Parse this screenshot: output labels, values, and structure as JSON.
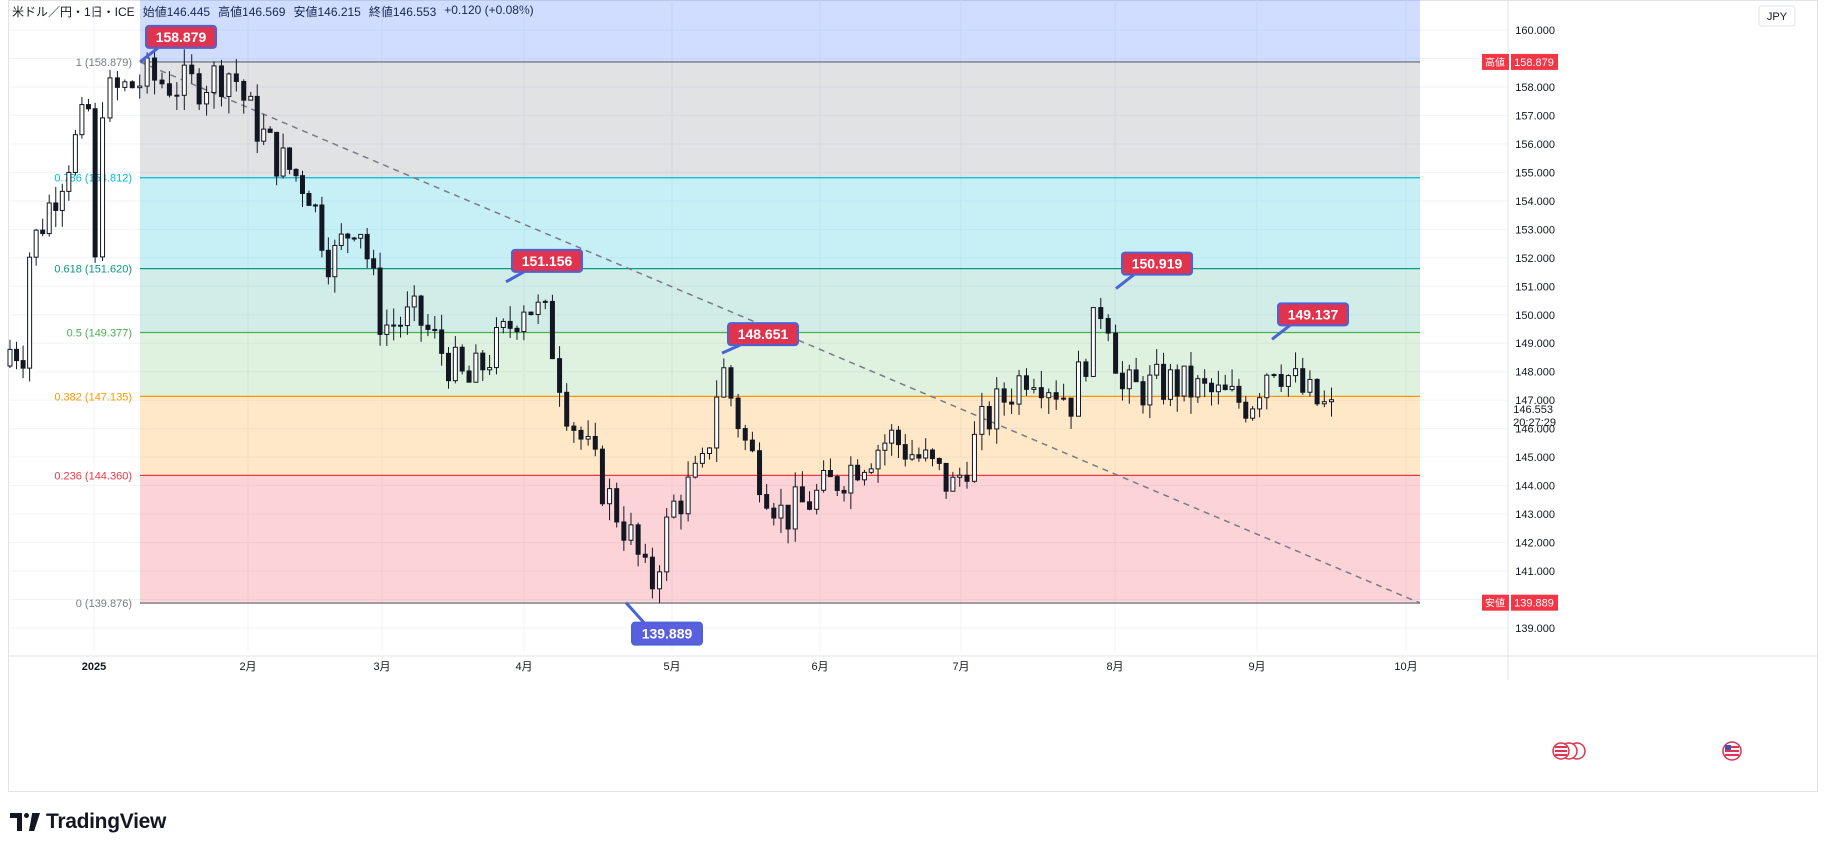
{
  "header": {
    "symbol": "米ドル／円・1日・ICE",
    "open": "始値146.445",
    "high": "高値146.569",
    "low": "安値146.215",
    "close": "終値146.553",
    "change": "+0.120 (+0.08%)"
  },
  "currency_label": "JPY",
  "brand": "TradingView",
  "chart_data": {
    "type": "candlestick",
    "title": "",
    "ylim": [
      138.4,
      160.8
    ],
    "y_ticks": [
      "160.000",
      "159.000",
      "158.000",
      "157.000",
      "156.000",
      "155.000",
      "154.000",
      "153.000",
      "152.000",
      "151.000",
      "150.000",
      "149.000",
      "148.000",
      "147.000",
      "146.000",
      "145.000",
      "144.000",
      "143.000",
      "142.000",
      "141.000",
      "140.000",
      "139.000"
    ],
    "x_ticks": [
      "2025",
      "2月",
      "3月",
      "4月",
      "5月",
      "6月",
      "7月",
      "8月",
      "9月",
      "10月"
    ],
    "fib_levels": [
      {
        "ratio": "1",
        "price": 158.879,
        "label": "1 (158.879)",
        "color": "#787b86"
      },
      {
        "ratio": "0.786",
        "price": 154.812,
        "label": "0.786 (154.812)",
        "color": "#00bcd4"
      },
      {
        "ratio": "0.618",
        "price": 151.62,
        "label": "0.618 (151.620)",
        "color": "#089981"
      },
      {
        "ratio": "0.5",
        "price": 149.377,
        "label": "0.5 (149.377)",
        "color": "#4caf50"
      },
      {
        "ratio": "0.382",
        "price": 147.135,
        "label": "0.382 (147.135)",
        "color": "#ff9800"
      },
      {
        "ratio": "0.236",
        "price": 144.36,
        "label": "0.236 (144.360)",
        "color": "#f23645"
      },
      {
        "ratio": "0",
        "price": 139.876,
        "label": "0 (139.876)",
        "color": "#787b86"
      }
    ],
    "callouts": [
      {
        "text": "158.879",
        "color": "#e0334d",
        "price": 158.879
      },
      {
        "text": "151.156",
        "color": "#e0334d",
        "price": 151.156
      },
      {
        "text": "148.651",
        "color": "#e0334d",
        "price": 148.651
      },
      {
        "text": "150.919",
        "color": "#e0334d",
        "price": 150.919
      },
      {
        "text": "149.137",
        "color": "#e0334d",
        "price": 149.137
      },
      {
        "text": "139.889",
        "color": "#5a5fe0",
        "price": 139.889
      }
    ],
    "price_badges": [
      {
        "label": "高値",
        "value": "158.879",
        "price": 158.879
      },
      {
        "label": "安値",
        "value": "139.889",
        "price": 139.889
      }
    ],
    "last_price": {
      "value": "146.553",
      "countdown": "20:27:29",
      "price": 146.553
    },
    "trend_line": {
      "from_price": 158.879,
      "to_price": 139.876
    },
    "anchors": [
      {
        "month": 0,
        "price": 148.2
      },
      {
        "month": 0.02,
        "price": 157.5
      },
      {
        "month": 0.35,
        "price": 158.3
      },
      {
        "month": 0.6,
        "price": 158.0
      },
      {
        "month": 0.9,
        "price": 158.6
      },
      {
        "month": 1.0,
        "price": 157.2
      },
      {
        "month": 1.2,
        "price": 155.6
      },
      {
        "month": 1.45,
        "price": 154.5
      },
      {
        "month": 1.62,
        "price": 151.8
      },
      {
        "month": 1.82,
        "price": 153.6
      },
      {
        "month": 2.0,
        "price": 149.6
      },
      {
        "month": 2.25,
        "price": 149.9
      },
      {
        "month": 2.6,
        "price": 147.5
      },
      {
        "month": 2.85,
        "price": 149.2
      },
      {
        "month": 3.0,
        "price": 150.5
      },
      {
        "month": 3.15,
        "price": 149.8
      },
      {
        "month": 3.3,
        "price": 146.6
      },
      {
        "month": 3.55,
        "price": 143.8
      },
      {
        "month": 3.72,
        "price": 142.2
      },
      {
        "month": 3.85,
        "price": 140.3
      },
      {
        "month": 4.0,
        "price": 143.2
      },
      {
        "month": 4.22,
        "price": 144.6
      },
      {
        "month": 4.33,
        "price": 148.3
      },
      {
        "month": 4.5,
        "price": 145.4
      },
      {
        "month": 4.75,
        "price": 142.9
      },
      {
        "month": 5.0,
        "price": 143.7
      },
      {
        "month": 5.25,
        "price": 144.8
      },
      {
        "month": 5.5,
        "price": 145.7
      },
      {
        "month": 5.75,
        "price": 144.8
      },
      {
        "month": 5.95,
        "price": 143.9
      },
      {
        "month": 6.15,
        "price": 146.2
      },
      {
        "month": 6.45,
        "price": 148.2
      },
      {
        "month": 6.72,
        "price": 147.0
      },
      {
        "month": 6.93,
        "price": 150.7
      },
      {
        "month": 7.05,
        "price": 147.3
      },
      {
        "month": 7.4,
        "price": 147.6
      },
      {
        "month": 7.75,
        "price": 147.1
      },
      {
        "month": 7.95,
        "price": 146.9
      },
      {
        "month": 8.1,
        "price": 148.5
      },
      {
        "month": 8.32,
        "price": 147.2
      },
      {
        "month": 8.5,
        "price": 146.553
      }
    ]
  }
}
